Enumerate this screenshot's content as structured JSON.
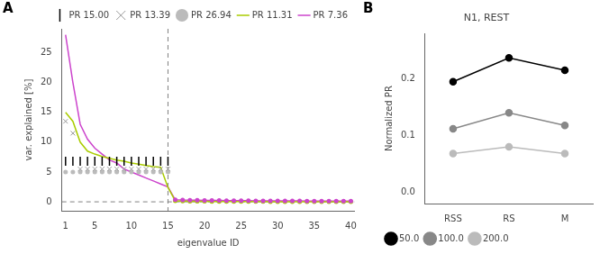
{
  "chart_data": [
    {
      "type": "line",
      "annotations": [
        "A"
      ],
      "x_label": "eigenvalue ID",
      "y_label": "var. explained [%]",
      "xlim": [
        0.5,
        40.5
      ],
      "ylim": [
        -1.5,
        29
      ],
      "xticks": [
        1,
        5,
        10,
        15,
        20,
        25,
        30,
        35,
        40
      ],
      "yticks": [
        0,
        5,
        10,
        15,
        20,
        25
      ],
      "grid": false,
      "legend": "upper right",
      "vline": 15,
      "hline": 0,
      "series": [
        {
          "name": "PR 15.00",
          "type": "scatter",
          "color": "black",
          "marker": "|",
          "x": [
            1,
            2,
            3,
            4,
            5,
            6,
            7,
            8,
            9,
            10,
            11,
            12,
            13,
            14,
            15
          ],
          "values": [
            6.8,
            6.8,
            6.8,
            6.8,
            6.8,
            6.8,
            6.8,
            6.8,
            6.8,
            6.8,
            6.8,
            6.8,
            6.8,
            6.8,
            6.8
          ]
        },
        {
          "name": "PR 13.39",
          "type": "scatter",
          "color": "#999999",
          "marker": "x",
          "x": [
            1,
            2,
            3,
            4,
            5,
            6,
            7,
            8,
            9,
            10,
            11,
            12,
            13,
            14,
            15
          ],
          "values": [
            13.5,
            11.5,
            5.5,
            5.5,
            5.5,
            5.5,
            5.5,
            5.5,
            5.5,
            5.5,
            5.5,
            5.5,
            5.5,
            5.5,
            5.5
          ]
        },
        {
          "name": "PR 26.94",
          "type": "scatter",
          "color": "#bbbbbb",
          "marker": "o",
          "x": [
            1,
            2,
            3,
            4,
            5,
            6,
            7,
            8,
            9,
            10,
            11,
            12,
            13,
            14,
            15
          ],
          "values": [
            5.0,
            5.0,
            5.0,
            5.0,
            5.0,
            5.0,
            5.0,
            5.0,
            5.0,
            5.0,
            5.0,
            5.0,
            5.0,
            5.0,
            5.0
          ]
        },
        {
          "type": "scatter",
          "color": "#cc44cc",
          "marker": "o",
          "x": [
            16,
            17,
            18,
            19,
            20,
            21,
            22,
            23,
            24,
            25,
            26,
            27,
            28,
            29,
            30,
            31,
            32,
            33,
            34,
            35,
            36,
            37,
            38,
            39,
            40
          ],
          "values": [
            0.35,
            0.3,
            0.28,
            0.26,
            0.24,
            0.23,
            0.22,
            0.21,
            0.2,
            0.19,
            0.18,
            0.17,
            0.17,
            0.16,
            0.16,
            0.15,
            0.15,
            0.15,
            0.14,
            0.14,
            0.14,
            0.13,
            0.13,
            0.13,
            0.12
          ]
        },
        {
          "type": "scatter",
          "color": "#aacc00",
          "marker": "o",
          "x": [
            16,
            17,
            18,
            19,
            20,
            21,
            22,
            23,
            24,
            25,
            26,
            27,
            28,
            29,
            30,
            31,
            32,
            33,
            34,
            35,
            36,
            37,
            38,
            39,
            40
          ],
          "values": [
            0.15,
            0.12,
            0.1,
            0.08,
            0.07,
            0.06,
            0.05,
            0.05,
            0.04,
            0.04,
            0.03,
            0.03,
            0.03,
            0.02,
            0.02,
            0.02,
            0.02,
            0.01,
            0.01,
            0.01,
            0.01,
            0.01,
            0.01,
            0.01,
            0.01
          ]
        },
        {
          "name": "PR 11.31",
          "type": "line",
          "color": "#aacc00",
          "x": [
            1,
            2,
            3,
            4,
            5,
            6,
            7,
            8,
            9,
            10,
            11,
            12,
            13,
            14,
            15,
            16,
            17,
            18,
            19,
            20,
            21,
            22,
            23,
            24,
            25,
            26,
            27,
            28,
            29,
            30,
            31,
            32,
            33,
            34,
            35,
            36,
            37,
            38,
            39,
            40
          ],
          "values": [
            15.0,
            13.5,
            10.0,
            8.5,
            8.0,
            7.6,
            7.3,
            7.0,
            6.8,
            6.5,
            6.3,
            6.1,
            5.9,
            5.8,
            2.4,
            0.15,
            0.12,
            0.1,
            0.08,
            0.07,
            0.06,
            0.05,
            0.05,
            0.04,
            0.04,
            0.03,
            0.03,
            0.03,
            0.02,
            0.02,
            0.02,
            0.02,
            0.01,
            0.01,
            0.01,
            0.01,
            0.01,
            0.01,
            0.01,
            0.01
          ]
        },
        {
          "name": "PR 7.36",
          "type": "line",
          "color": "#cc44cc",
          "x": [
            1,
            2,
            3,
            4,
            5,
            6,
            7,
            8,
            9,
            10,
            11,
            12,
            13,
            14,
            15,
            16,
            17,
            18,
            19,
            20,
            21,
            22,
            23,
            24,
            25,
            26,
            27,
            28,
            29,
            30,
            31,
            32,
            33,
            34,
            35,
            36,
            37,
            38,
            39,
            40
          ],
          "values": [
            28.0,
            20.0,
            13.0,
            10.5,
            9.0,
            8.0,
            7.0,
            6.5,
            5.5,
            5.0,
            4.5,
            4.0,
            3.5,
            3.0,
            2.5,
            0.35,
            0.3,
            0.28,
            0.26,
            0.24,
            0.23,
            0.22,
            0.21,
            0.2,
            0.19,
            0.18,
            0.17,
            0.17,
            0.16,
            0.16,
            0.15,
            0.15,
            0.15,
            0.14,
            0.14,
            0.14,
            0.13,
            0.13,
            0.13,
            0.12
          ]
        }
      ]
    },
    {
      "type": "line",
      "title": "N1, REST",
      "annotations": [
        "B"
      ],
      "y_label": "Normalized PR",
      "categories": [
        "RSS",
        "RS",
        "M"
      ],
      "ylim": [
        -0.02,
        0.28
      ],
      "yticks": [
        {
          "value": 0.0,
          "label": "0.0"
        },
        0.1,
        0.2
      ],
      "grid": false,
      "legend": "lower left",
      "series": [
        {
          "name": "50.0",
          "color": "black",
          "marker": "o",
          "values": [
            0.195,
            0.237,
            0.215
          ]
        },
        {
          "name": "100.0",
          "color": "#888888",
          "marker": "o",
          "values": [
            0.112,
            0.14,
            0.118
          ]
        },
        {
          "name": "200.0",
          "color": "#bbbbbb",
          "marker": "o",
          "values": [
            0.068,
            0.08,
            0.068
          ]
        }
      ]
    }
  ]
}
